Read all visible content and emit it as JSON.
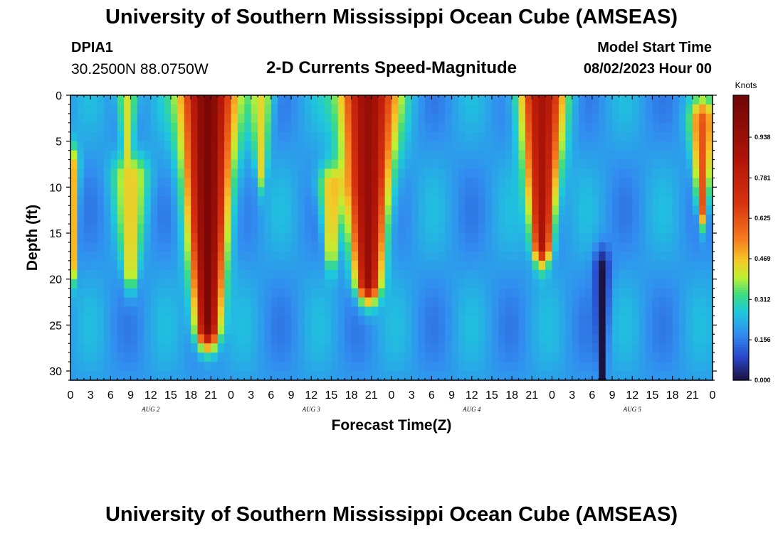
{
  "header": {
    "title": "University of Southern Mississippi Ocean Cube (AMSEAS)",
    "station_id": "DPIA1",
    "station_coords": "30.2500N  88.0750W",
    "chart_subtitle": "2-D Currents Speed-Magnitude",
    "model_start_label": "Model Start Time",
    "model_start_value": "08/02/2023 Hour 00"
  },
  "footer": {
    "title": "University of Southern Mississippi Ocean Cube (AMSEAS)"
  },
  "chart_data": {
    "type": "heatmap",
    "title": "2-D Currents Speed-Magnitude",
    "xlabel": "Forecast Time(Z)",
    "ylabel": "Depth (ft)",
    "x_range_hours": [
      0,
      96
    ],
    "x_tick_labels": [
      "0",
      "3",
      "6",
      "9",
      "12",
      "15",
      "18",
      "21",
      "0",
      "3",
      "6",
      "9",
      "12",
      "15",
      "18",
      "21",
      "0",
      "3",
      "6",
      "9",
      "12",
      "15",
      "18",
      "21",
      "0",
      "3",
      "6",
      "9",
      "12",
      "15",
      "18",
      "21",
      "0"
    ],
    "day_labels": [
      {
        "label": "AUG 2",
        "hour": 12
      },
      {
        "label": "AUG 3",
        "hour": 36
      },
      {
        "label": "AUG 4",
        "hour": 60
      },
      {
        "label": "AUG 5",
        "hour": 84
      }
    ],
    "y_range_ft": [
      0,
      31
    ],
    "y_ticks": [
      0,
      5,
      10,
      15,
      20,
      25,
      30
    ],
    "colorbar": {
      "label": "Knots",
      "range": [
        0.0,
        1.1
      ],
      "ticks": [
        "0.938",
        "0.781",
        "0.625",
        "0.469",
        "0.312",
        "0.156",
        "0.000"
      ],
      "tick_values": [
        0.938,
        0.781,
        0.625,
        0.469,
        0.312,
        0.156,
        0.0
      ]
    },
    "features": [
      {
        "hour": 0.5,
        "depth_top": 8,
        "depth_bottom": 18,
        "width_h": 0.8,
        "speed": 0.48
      },
      {
        "hour": 8.5,
        "depth_top": 0,
        "depth_bottom": 6,
        "width_h": 1.6,
        "speed": 0.42
      },
      {
        "hour": 9,
        "depth_top": 9,
        "depth_bottom": 19,
        "width_h": 2.5,
        "speed": 0.46
      },
      {
        "hour": 20.5,
        "depth_top": 0,
        "depth_bottom": 25,
        "width_h": 3.8,
        "speed": 1.05
      },
      {
        "hour": 28.5,
        "depth_top": 0,
        "depth_bottom": 8,
        "width_h": 1.8,
        "speed": 0.44
      },
      {
        "hour": 39,
        "depth_top": 10,
        "depth_bottom": 17,
        "width_h": 2.0,
        "speed": 0.47
      },
      {
        "hour": 44.5,
        "depth_top": 0,
        "depth_bottom": 20,
        "width_h": 4.0,
        "speed": 0.95
      },
      {
        "hour": 70.5,
        "depth_top": 0,
        "depth_bottom": 16,
        "width_h": 3.2,
        "speed": 0.88
      },
      {
        "hour": 94.5,
        "depth_top": 3,
        "depth_bottom": 12,
        "width_h": 1.8,
        "speed": 0.62
      },
      {
        "hour": 79.5,
        "depth_top": 19,
        "depth_bottom": 31,
        "width_h": 1.2,
        "speed": 0.0
      }
    ]
  }
}
